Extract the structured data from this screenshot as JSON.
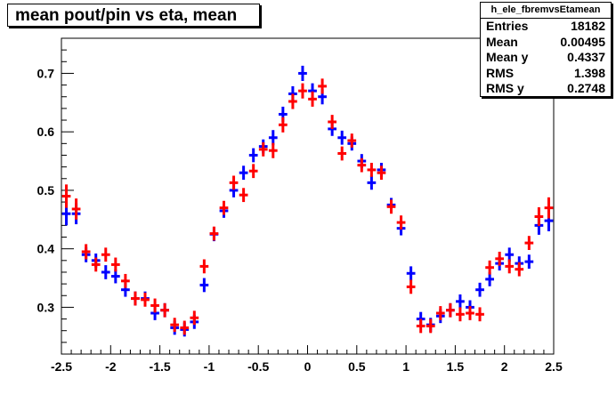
{
  "title": "mean pout/pin vs eta, mean",
  "stats": {
    "name": "h_ele_fbremvsEtamean",
    "rows": [
      {
        "label": "Entries",
        "value": "18182"
      },
      {
        "label": "Mean",
        "value": "0.00495"
      },
      {
        "label": "Mean y",
        "value": "0.4337"
      },
      {
        "label": "RMS",
        "value": "1.398"
      },
      {
        "label": "RMS y",
        "value": "0.2748"
      }
    ]
  },
  "chart_data": {
    "type": "scatter",
    "title": "mean pout/pin vs eta, mean",
    "xlim": [
      -2.5,
      2.5
    ],
    "ylim": [
      0.22,
      0.76
    ],
    "xticks": [
      -2.5,
      -2,
      -1.5,
      -1,
      -0.5,
      0,
      0.5,
      1,
      1.5,
      2,
      2.5
    ],
    "xtick_labels": [
      "-2.5",
      "-2",
      "-1.5",
      "-1",
      "-0.5",
      "0",
      "0.5",
      "1",
      "1.5",
      "2",
      "2.5"
    ],
    "yticks": [
      0.3,
      0.4,
      0.5,
      0.6,
      0.7
    ],
    "ytick_labels": [
      "0.3",
      "0.4",
      "0.5",
      "0.6",
      "0.7"
    ],
    "series": [
      {
        "color": "#0000ff",
        "x": [
          -2.45,
          -2.35,
          -2.25,
          -2.15,
          -2.05,
          -1.95,
          -1.85,
          -1.75,
          -1.65,
          -1.55,
          -1.45,
          -1.35,
          -1.25,
          -1.15,
          -1.05,
          -0.95,
          -0.85,
          -0.75,
          -0.65,
          -0.55,
          -0.45,
          -0.35,
          -0.25,
          -0.15,
          -0.05,
          0.05,
          0.15,
          0.25,
          0.35,
          0.45,
          0.55,
          0.65,
          0.75,
          0.85,
          0.95,
          1.05,
          1.15,
          1.25,
          1.35,
          1.45,
          1.55,
          1.65,
          1.75,
          1.85,
          1.95,
          2.05,
          2.15,
          2.25,
          2.35,
          2.45
        ],
        "y": [
          0.46,
          0.46,
          0.39,
          0.38,
          0.36,
          0.353,
          0.33,
          0.315,
          0.315,
          0.29,
          0.295,
          0.265,
          0.262,
          0.275,
          0.338,
          0.425,
          0.465,
          0.5,
          0.53,
          0.56,
          0.575,
          0.59,
          0.63,
          0.665,
          0.7,
          0.67,
          0.66,
          0.605,
          0.59,
          0.58,
          0.55,
          0.513,
          0.535,
          0.475,
          0.435,
          0.358,
          0.28,
          0.27,
          0.285,
          0.295,
          0.31,
          0.3,
          0.33,
          0.348,
          0.375,
          0.39,
          0.375,
          0.378,
          0.44,
          0.448
        ],
        "yerr": [
          0.02,
          0.018,
          0.013,
          0.012,
          0.012,
          0.012,
          0.012,
          0.012,
          0.012,
          0.012,
          0.012,
          0.012,
          0.012,
          0.012,
          0.012,
          0.012,
          0.012,
          0.012,
          0.012,
          0.012,
          0.012,
          0.013,
          0.013,
          0.013,
          0.013,
          0.013,
          0.013,
          0.012,
          0.012,
          0.012,
          0.012,
          0.012,
          0.012,
          0.012,
          0.012,
          0.012,
          0.012,
          0.012,
          0.012,
          0.012,
          0.012,
          0.012,
          0.012,
          0.012,
          0.012,
          0.012,
          0.012,
          0.012,
          0.016,
          0.018
        ]
      },
      {
        "color": "#ff0000",
        "x": [
          -2.45,
          -2.35,
          -2.25,
          -2.15,
          -2.05,
          -1.95,
          -1.85,
          -1.75,
          -1.65,
          -1.55,
          -1.45,
          -1.35,
          -1.25,
          -1.15,
          -1.05,
          -0.95,
          -0.85,
          -0.75,
          -0.65,
          -0.55,
          -0.45,
          -0.35,
          -0.25,
          -0.15,
          -0.05,
          0.05,
          0.15,
          0.25,
          0.35,
          0.45,
          0.55,
          0.65,
          0.75,
          0.85,
          0.95,
          1.05,
          1.15,
          1.25,
          1.35,
          1.45,
          1.55,
          1.65,
          1.75,
          1.85,
          1.95,
          2.05,
          2.15,
          2.25,
          2.35,
          2.45
        ],
        "y": [
          0.49,
          0.468,
          0.395,
          0.373,
          0.39,
          0.373,
          0.345,
          0.315,
          0.313,
          0.303,
          0.295,
          0.27,
          0.265,
          0.282,
          0.37,
          0.426,
          0.47,
          0.513,
          0.492,
          0.533,
          0.57,
          0.568,
          0.612,
          0.652,
          0.67,
          0.656,
          0.678,
          0.617,
          0.563,
          0.585,
          0.543,
          0.535,
          0.53,
          0.472,
          0.445,
          0.335,
          0.268,
          0.268,
          0.29,
          0.295,
          0.288,
          0.29,
          0.288,
          0.368,
          0.383,
          0.37,
          0.365,
          0.41,
          0.455,
          0.47
        ],
        "yerr": [
          0.02,
          0.018,
          0.013,
          0.012,
          0.012,
          0.012,
          0.012,
          0.012,
          0.012,
          0.012,
          0.012,
          0.012,
          0.012,
          0.012,
          0.012,
          0.012,
          0.012,
          0.012,
          0.012,
          0.012,
          0.012,
          0.013,
          0.013,
          0.013,
          0.013,
          0.013,
          0.013,
          0.012,
          0.012,
          0.012,
          0.012,
          0.012,
          0.012,
          0.012,
          0.012,
          0.012,
          0.012,
          0.012,
          0.012,
          0.012,
          0.012,
          0.012,
          0.012,
          0.012,
          0.012,
          0.012,
          0.012,
          0.012,
          0.016,
          0.018
        ]
      }
    ]
  }
}
